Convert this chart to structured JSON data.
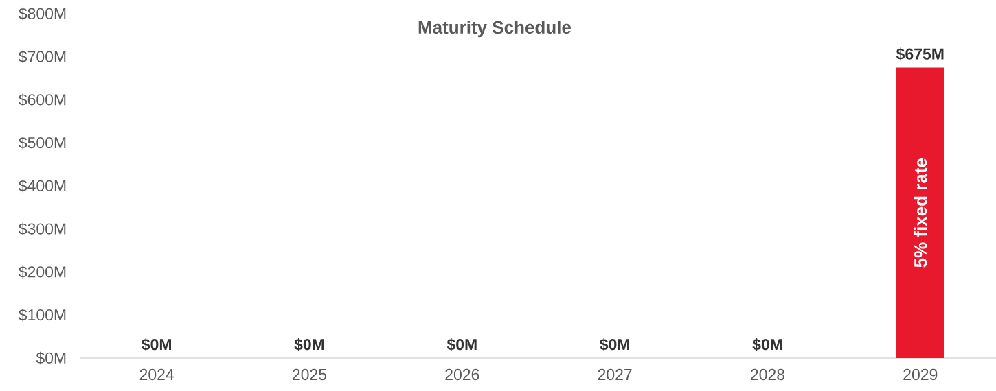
{
  "chart_data": {
    "type": "bar",
    "title": "Maturity Schedule",
    "categories": [
      "2024",
      "2025",
      "2026",
      "2027",
      "2028",
      "2029"
    ],
    "values": [
      0,
      0,
      0,
      0,
      0,
      675
    ],
    "value_labels": [
      "$0M",
      "$0M",
      "$0M",
      "$0M",
      "$0M",
      "$675M"
    ],
    "color": "#e8192c",
    "ylim": [
      0,
      800
    ],
    "yticks": [
      {
        "value": 0,
        "label": "$0M"
      },
      {
        "value": 100,
        "label": "$100M"
      },
      {
        "value": 200,
        "label": "$200M"
      },
      {
        "value": 300,
        "label": "$300M"
      },
      {
        "value": 400,
        "label": "$400M"
      },
      {
        "value": 500,
        "label": "$500M"
      },
      {
        "value": 600,
        "label": "$600M"
      },
      {
        "value": 700,
        "label": "$700M"
      },
      {
        "value": 800,
        "label": "$800M"
      }
    ],
    "annotations": [
      "5% fixed rate"
    ]
  }
}
